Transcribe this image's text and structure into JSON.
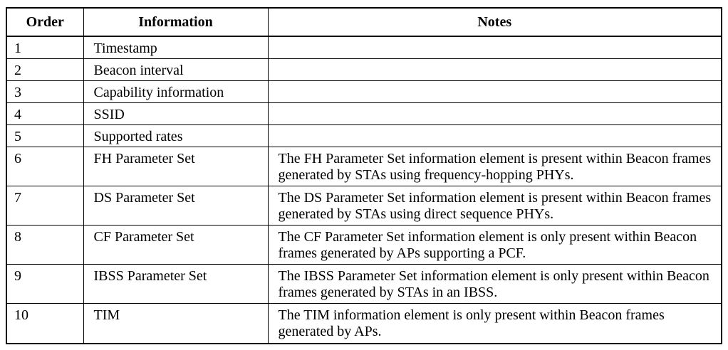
{
  "table": {
    "headers": {
      "order": "Order",
      "information": "Information",
      "notes": "Notes"
    },
    "rows": [
      {
        "order": "1",
        "information": "Timestamp",
        "notes": ""
      },
      {
        "order": "2",
        "information": "Beacon interval",
        "notes": ""
      },
      {
        "order": "3",
        "information": "Capability information",
        "notes": ""
      },
      {
        "order": "4",
        "information": "SSID",
        "notes": ""
      },
      {
        "order": "5",
        "information": "Supported rates",
        "notes": ""
      },
      {
        "order": "6",
        "information": "FH Parameter Set",
        "notes": "The FH Parameter Set information element is present within Beacon frames generated by STAs using frequency-hopping PHYs."
      },
      {
        "order": "7",
        "information": "DS Parameter Set",
        "notes": "The DS Parameter Set information element is present within Beacon frames generated by STAs using direct sequence PHYs."
      },
      {
        "order": "8",
        "information": "CF Parameter Set",
        "notes": "The CF Parameter Set information element is only present within Beacon frames generated by APs supporting a PCF."
      },
      {
        "order": "9",
        "information": "IBSS Parameter Set",
        "notes": "The IBSS Parameter Set information element is only present within Beacon frames generated by STAs in an IBSS."
      },
      {
        "order": "10",
        "information": "TIM",
        "notes": "The TIM information element is only present within Beacon frames generated by APs."
      }
    ]
  }
}
